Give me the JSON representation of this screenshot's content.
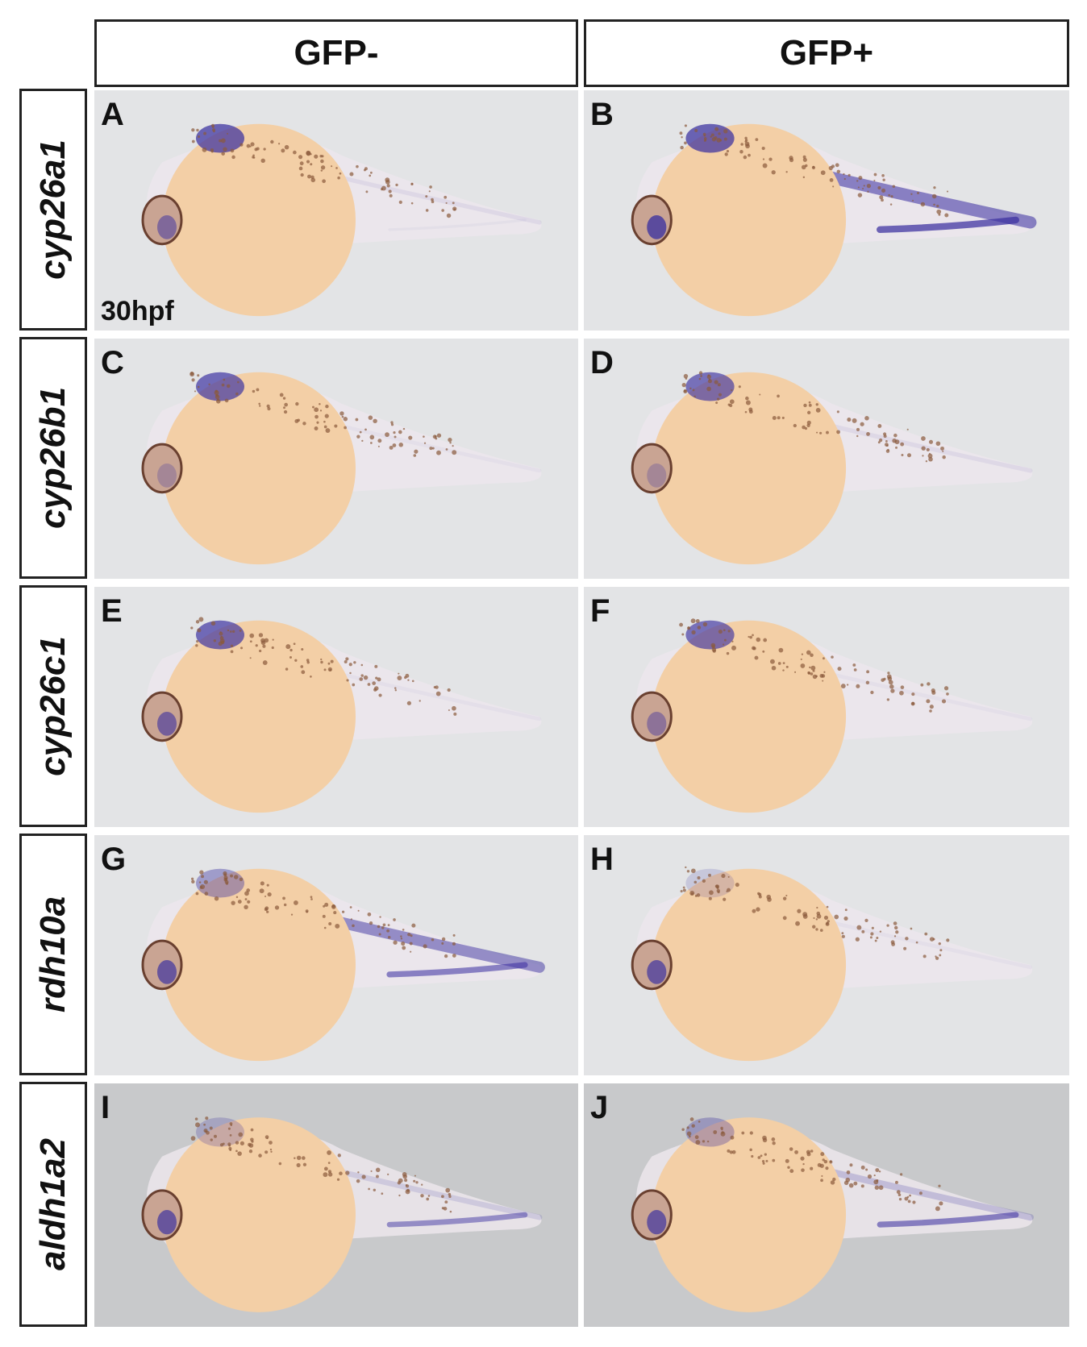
{
  "columns": [
    {
      "label": "GFP-"
    },
    {
      "label": "GFP+"
    }
  ],
  "rows": [
    {
      "gene": "cyp26a1",
      "left_letter": "A",
      "right_letter": "B",
      "stage": "30hpf"
    },
    {
      "gene": "cyp26b1",
      "left_letter": "C",
      "right_letter": "D"
    },
    {
      "gene": "cyp26c1",
      "left_letter": "E",
      "right_letter": "F"
    },
    {
      "gene": "rdh10a",
      "left_letter": "G",
      "right_letter": "H"
    },
    {
      "gene": "aldh1a2",
      "left_letter": "I",
      "right_letter": "J"
    }
  ],
  "colors": {
    "panel_bg": "#e3e4e6",
    "panel_bg_last_row": "#c8c9cb",
    "yolk": "#f3cfa6",
    "body": "#ece6ec",
    "stain": "#3a2fa0",
    "melanophore": "#8a5a3c"
  }
}
